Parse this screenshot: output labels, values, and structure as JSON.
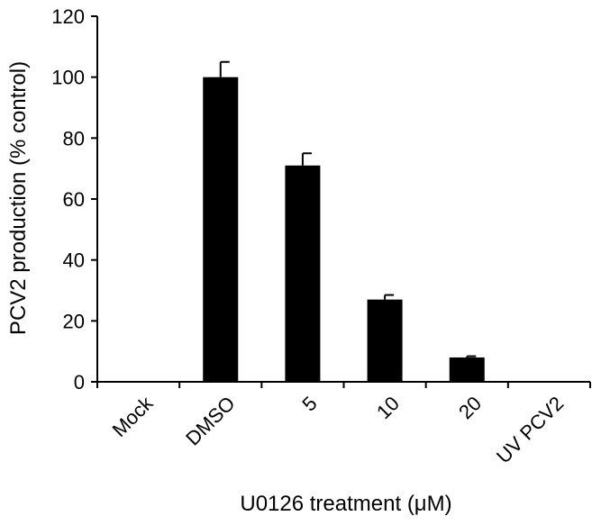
{
  "chart_data": {
    "type": "bar",
    "categories": [
      "Mock",
      "DMSO",
      "5",
      "10",
      "20",
      "UV PCV2"
    ],
    "values": [
      0,
      100,
      71,
      27,
      8,
      0
    ],
    "errors": [
      0,
      5,
      4,
      1.5,
      0.4,
      0
    ],
    "xlabel": "U0126 treatment (μM)",
    "ylabel": "PCV2 production (% control)",
    "ylim": [
      0,
      120
    ],
    "yticks": [
      0,
      20,
      40,
      60,
      80,
      100,
      120
    ],
    "grid": false,
    "legend": "none",
    "bar_color": "#000000"
  }
}
